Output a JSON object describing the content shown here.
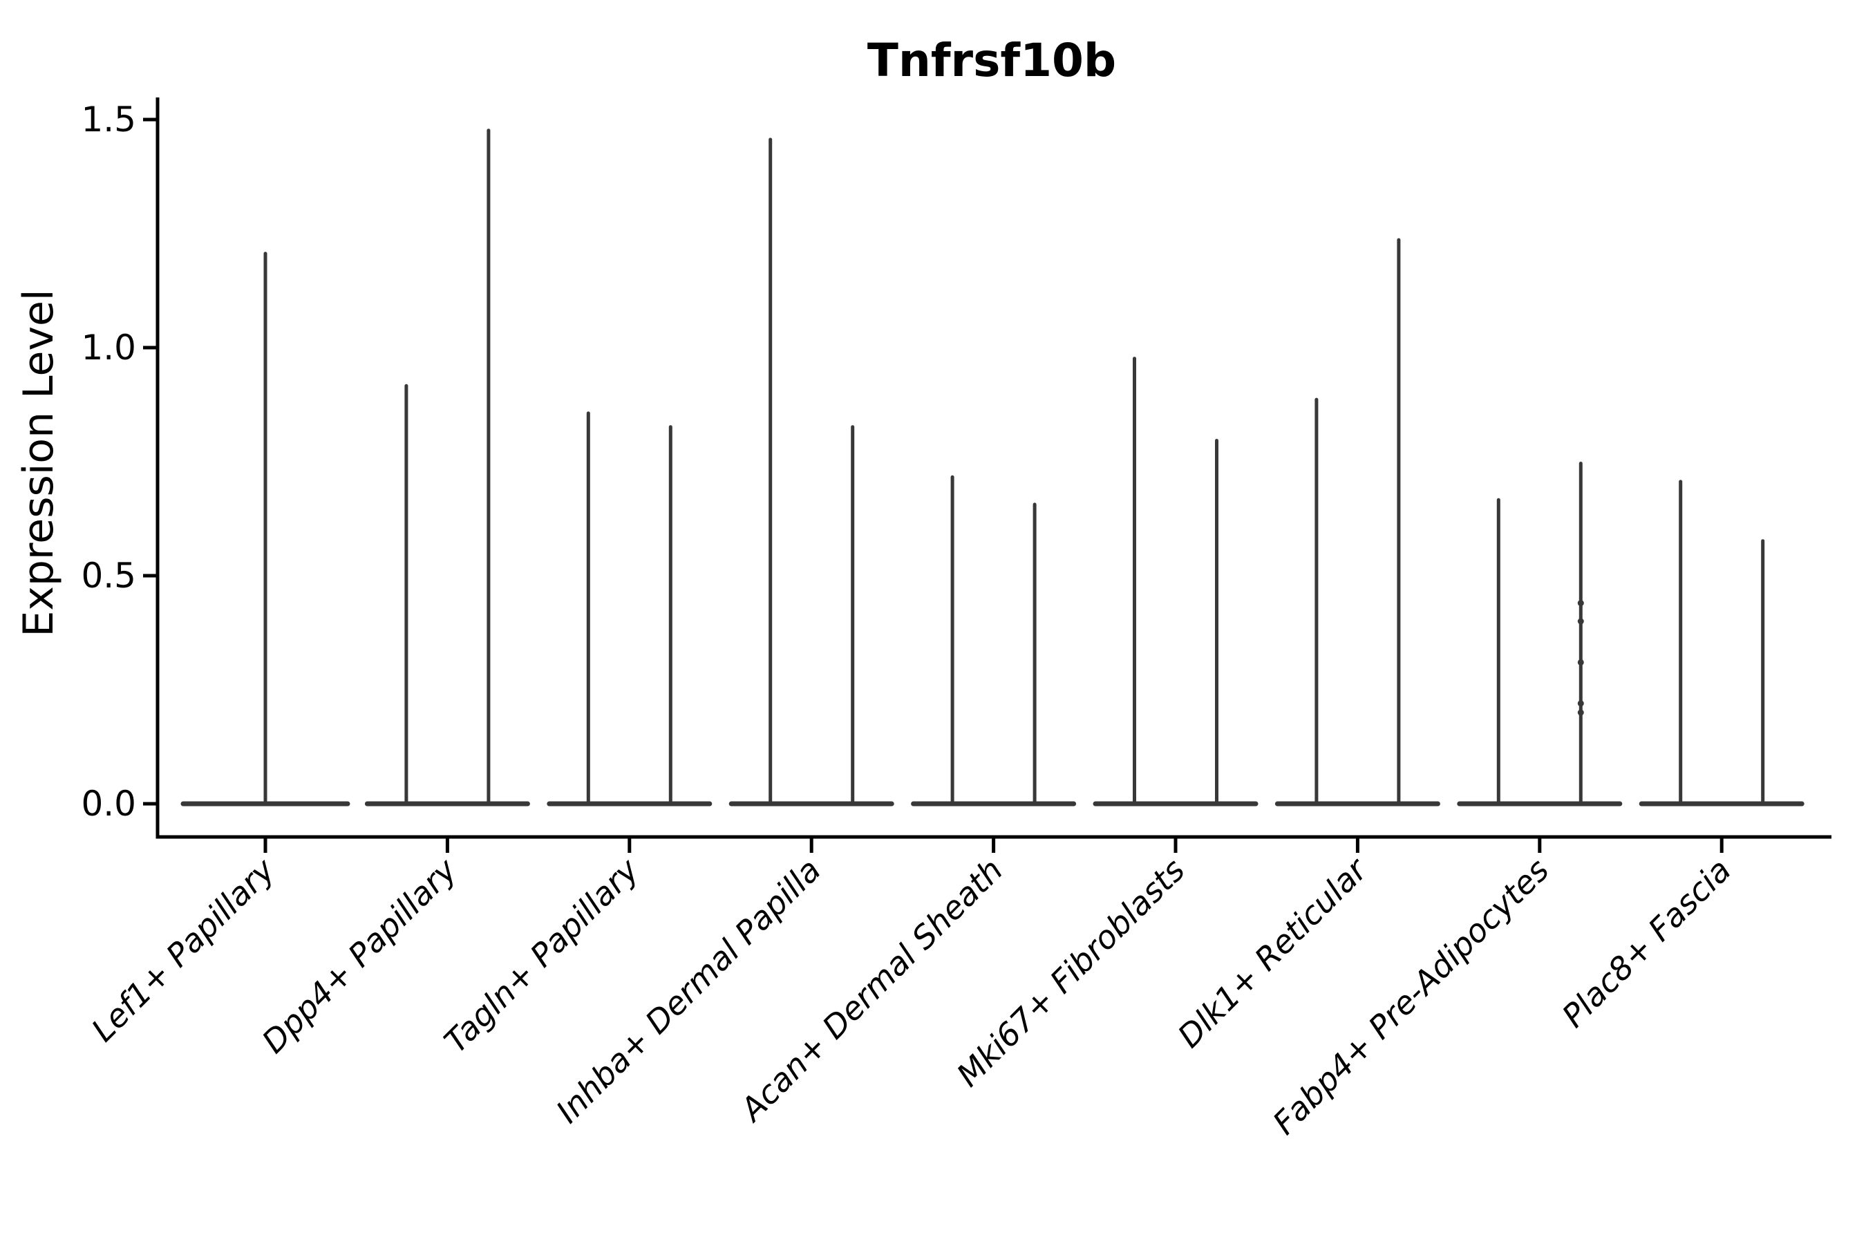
{
  "figure": {
    "title": "Tnfrsf10b",
    "ylabel": "Expression Level"
  },
  "chart_data": {
    "type": "violin",
    "title": "Tnfrsf10b",
    "xlabel": "",
    "ylabel": "Expression Level",
    "ytick_labels": [
      "0.0",
      "0.5",
      "1.0",
      "1.5"
    ],
    "ytick_values": [
      0.0,
      0.5,
      1.0,
      1.5
    ],
    "ylim": [
      -0.075,
      1.545
    ],
    "grid": false,
    "legend": "none",
    "background": "#ffffff",
    "axis_color": "#000000",
    "violin_color": "#383838",
    "categories": [
      "Lef1+ Papillary",
      "Dpp4+ Papillary",
      "Tagln+ Papillary",
      "Inhba+ Dermal Papilla",
      "Acan+ Dermal Sheath",
      "Mki67+ Fibroblasts",
      "Dlk1+ Reticular",
      "Fabp4+ Pre-Adipocytes",
      "Plac8+ Fascia"
    ],
    "groups": [
      {
        "category": "Lef1+ Papillary",
        "violins": [
          {
            "max": 1.21,
            "points": []
          }
        ]
      },
      {
        "category": "Dpp4+ Papillary",
        "violins": [
          {
            "max": 0.92,
            "points": []
          },
          {
            "max": 1.48,
            "points": []
          }
        ]
      },
      {
        "category": "Tagln+ Papillary",
        "violins": [
          {
            "max": 0.86,
            "points": []
          },
          {
            "max": 0.83,
            "points": []
          }
        ]
      },
      {
        "category": "Inhba+ Dermal Papilla",
        "violins": [
          {
            "max": 1.46,
            "points": []
          },
          {
            "max": 0.83,
            "points": []
          }
        ]
      },
      {
        "category": "Acan+ Dermal Sheath",
        "violins": [
          {
            "max": 0.72,
            "points": []
          },
          {
            "max": 0.66,
            "points": []
          }
        ]
      },
      {
        "category": "Mki67+ Fibroblasts",
        "violins": [
          {
            "max": 0.98,
            "points": []
          },
          {
            "max": 0.8,
            "points": []
          }
        ]
      },
      {
        "category": "Dlk1+ Reticular",
        "violins": [
          {
            "max": 0.89,
            "points": []
          },
          {
            "max": 1.24,
            "points": []
          }
        ]
      },
      {
        "category": "Fabp4+ Pre-Adipocytes",
        "violins": [
          {
            "max": 0.67,
            "points": []
          },
          {
            "max": 0.75,
            "points": [
              0.44,
              0.4,
              0.31,
              0.22,
              0.2
            ]
          }
        ]
      },
      {
        "category": "Plac8+ Fascia",
        "violins": [
          {
            "max": 0.71,
            "points": []
          },
          {
            "max": 0.58,
            "points": []
          }
        ]
      }
    ],
    "shape_note": "zero-inflated violins: wide flat base at expression 0 with a thin vertical spike up to the max value"
  }
}
